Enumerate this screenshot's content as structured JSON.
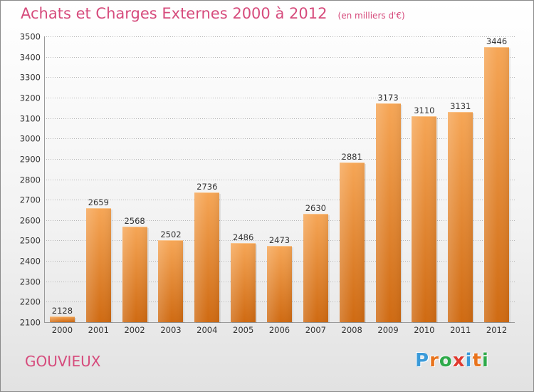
{
  "header": {
    "title": "Achats et Charges Externes 2000 à 2012",
    "unit": "(en milliers d'€)"
  },
  "footer": {
    "commune": "GOUVIEUX",
    "brand": "Proxiti"
  },
  "brand_colors": [
    "#3a9ad9",
    "#e8731c",
    "#2eaa4a",
    "#e03a2f",
    "#3a9ad9",
    "#e8731c",
    "#2eaa4a"
  ],
  "colors": {
    "title": "#d64b7c",
    "bar_top": "#f6a656",
    "bar_bottom": "#cf6a12",
    "grid": "#b5b5b5"
  },
  "chart_data": {
    "type": "bar",
    "categories": [
      "2000",
      "2001",
      "2002",
      "2003",
      "2004",
      "2005",
      "2006",
      "2007",
      "2008",
      "2009",
      "2010",
      "2011",
      "2012"
    ],
    "values": [
      2128,
      2659,
      2568,
      2502,
      2736,
      2486,
      2473,
      2630,
      2881,
      3173,
      3110,
      3131,
      3446
    ],
    "data_labels": [
      "2128",
      "2659",
      "2568",
      "2502",
      "2736",
      "2486",
      "2473",
      "2630",
      "2881",
      "3173",
      "3110",
      "3131",
      "3446"
    ],
    "ylim": [
      2100,
      3500
    ],
    "yticks": [
      2100,
      2200,
      2300,
      2400,
      2500,
      2600,
      2700,
      2800,
      2900,
      3000,
      3100,
      3200,
      3300,
      3400,
      3500
    ],
    "ytick_labels": [
      "2100",
      "2200",
      "2300",
      "2400",
      "2500",
      "2600",
      "2700",
      "2800",
      "2900",
      "3000",
      "3100",
      "3200",
      "3300",
      "3400",
      "3500"
    ],
    "grid": true,
    "legend": "none"
  }
}
